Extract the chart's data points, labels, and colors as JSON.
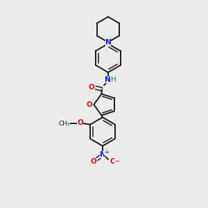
{
  "bg_color": "#ebebeb",
  "bond_color": "#1a1a1a",
  "N_color": "#1414e6",
  "O_color": "#cc1414",
  "NH_color": "#147878",
  "figsize": [
    3.0,
    3.0
  ],
  "dpi": 100,
  "xlim": [
    0,
    10
  ],
  "ylim": [
    0,
    10
  ]
}
